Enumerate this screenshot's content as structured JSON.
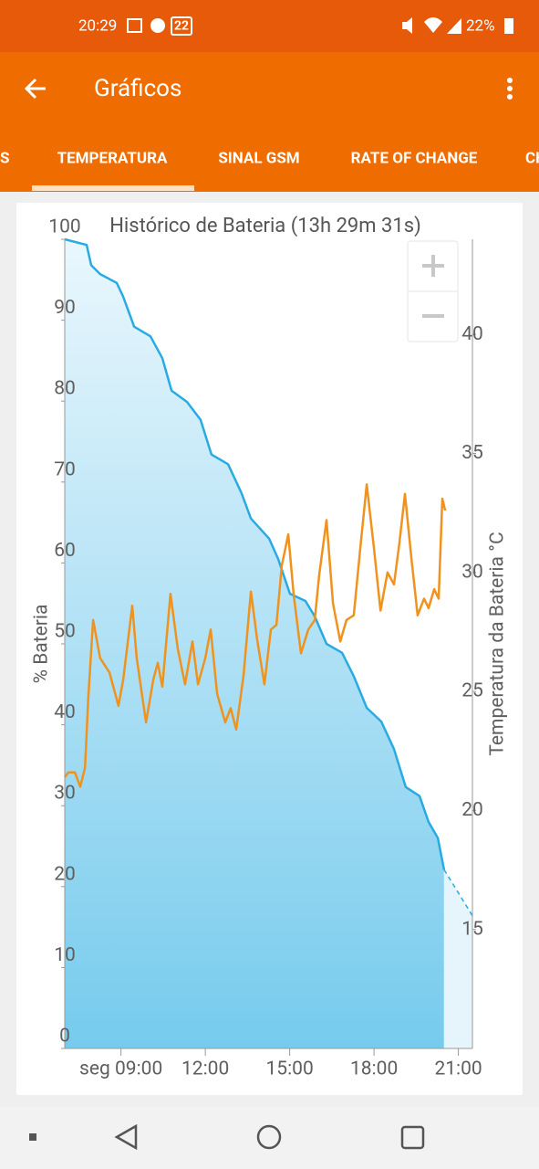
{
  "status": {
    "time": "20:29",
    "badge": "22",
    "battery": "22%"
  },
  "app_bar": {
    "title": "Gráficos"
  },
  "tabs": [
    "S",
    "TEMPERATURA",
    "SINAL GSM",
    "RATE OF CHANGE",
    "CH"
  ],
  "chart_data": {
    "type": "line",
    "title": "Histórico de Bateria (13h 29m 31s)",
    "y_label": "% Bateria",
    "y2_label": "Temperatura da Bateria °C",
    "xlim": [
      7,
      21.5
    ],
    "xticks": [
      {
        "value": 9,
        "label": "seg 09:00"
      },
      {
        "value": 12,
        "label": "12:00"
      },
      {
        "value": 15,
        "label": "15:00"
      },
      {
        "value": 18,
        "label": "18:00"
      },
      {
        "value": 21,
        "label": "21:00"
      }
    ],
    "ylim": [
      0,
      100
    ],
    "yticks": [
      0,
      10,
      20,
      30,
      40,
      50,
      60,
      70,
      80,
      90,
      100
    ],
    "y2lim": [
      10,
      44
    ],
    "y2ticks": [
      15,
      20,
      25,
      30,
      35,
      40
    ],
    "grid": false,
    "series": [
      {
        "color": "#29abe2",
        "fill": true,
        "x": [
          7.0,
          7.78,
          7.94,
          8.26,
          8.85,
          9.08,
          9.47,
          10.05,
          10.47,
          10.8,
          11.35,
          11.83,
          12.22,
          12.81,
          13.29,
          13.62,
          14.27,
          14.59,
          15.01,
          15.56,
          15.89,
          16.31,
          16.86,
          17.28,
          17.74,
          18.26,
          18.71,
          19.13,
          19.62,
          19.94,
          20.27,
          20.49
        ],
        "values": [
          100,
          99.3,
          96.8,
          95.7,
          94.6,
          92.9,
          89.2,
          88,
          85.3,
          81.3,
          79.9,
          77.7,
          73.4,
          72.2,
          68.6,
          65.5,
          63,
          60.5,
          56.2,
          55.3,
          53.4,
          50,
          48.9,
          46,
          42.1,
          40.4,
          37,
          32.3,
          31.2,
          28,
          26,
          22.1
        ]
      },
      {
        "color": "#29abe2",
        "dashed": true,
        "x": [
          20.49,
          21.5
        ],
        "values": [
          22.1,
          16.4
        ]
      },
      {
        "color": "#f0921e",
        "axis": "y2",
        "x": [
          7.0,
          7.13,
          7.36,
          7.55,
          7.72,
          7.84,
          8.01,
          8.26,
          8.59,
          8.91,
          9.08,
          9.4,
          9.56,
          9.89,
          10.15,
          10.31,
          10.47,
          10.76,
          11.02,
          11.28,
          11.54,
          11.74,
          12.0,
          12.19,
          12.42,
          12.71,
          12.9,
          13.1,
          13.36,
          13.62,
          13.84,
          14.1,
          14.33,
          14.53,
          14.72,
          14.95,
          15.14,
          15.4,
          15.66,
          15.89,
          16.05,
          16.31,
          16.54,
          16.8,
          17.02,
          17.28,
          17.51,
          17.74,
          18.0,
          18.23,
          18.48,
          18.71,
          18.9,
          19.1,
          19.33,
          19.55,
          19.78,
          19.94,
          20.14,
          20.3,
          20.43,
          20.53
        ],
        "values": [
          21.4,
          21.6,
          21.6,
          21.0,
          21.8,
          24.8,
          28.0,
          26.4,
          25.8,
          24.4,
          25.5,
          28.6,
          26.4,
          23.7,
          25.5,
          26.2,
          25.2,
          29.1,
          26.8,
          25.3,
          27.1,
          25.3,
          26.4,
          27.6,
          24.9,
          23.7,
          24.3,
          23.4,
          25.7,
          29.2,
          27.2,
          25.3,
          27.6,
          27.8,
          30.3,
          31.6,
          29.1,
          26.6,
          27.6,
          28.0,
          29.9,
          32.2,
          28.7,
          27.1,
          28.0,
          28.2,
          31.0,
          33.7,
          31.0,
          28.4,
          30.0,
          29.5,
          31.2,
          33.3,
          30.6,
          28.2,
          28.9,
          28.5,
          29.3,
          28.9,
          33.1,
          32.6
        ]
      }
    ]
  }
}
